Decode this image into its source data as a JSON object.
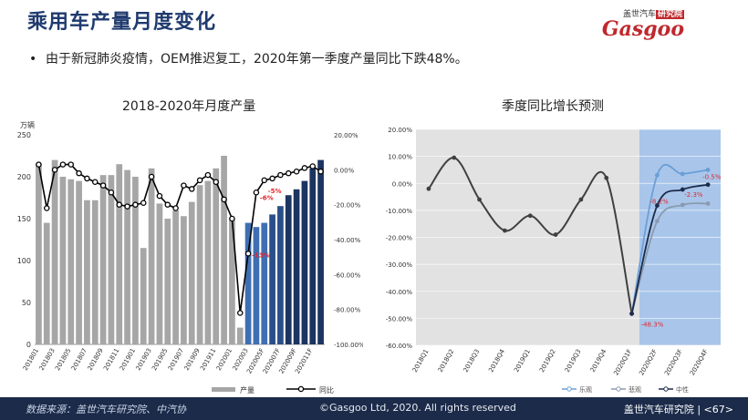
{
  "page": {
    "title": "乘用车产量月度变化",
    "bullet": "由于新冠肺炎疫情，OEM推迟复工，2020年第一季度产量同比下跌48%。",
    "logo_top": "盖世汽车",
    "logo_badge": "研究院",
    "logo_word": "Gasgoo"
  },
  "footer": {
    "source": "数据来源：盖世汽车研究院、中汽协",
    "copyright": "©Gasgoo Ltd, 2020. All rights reserved",
    "brand": "盖世汽车研究院 | <67>"
  },
  "chart_data": [
    {
      "type": "bar",
      "title": "2018-2020年月度产量",
      "ylabel": "万辆",
      "ylim": [
        0,
        250
      ],
      "y2lim": [
        -100,
        20
      ],
      "yticks": [
        "0",
        "50",
        "100",
        "150",
        "200",
        "250"
      ],
      "y2ticks": [
        "20.00%",
        "0.00%",
        "-20.00%",
        "-40.00%",
        "-60.00%",
        "-80.00%",
        "-100.00%"
      ],
      "categories": [
        "201801",
        "201802",
        "201803",
        "201804",
        "201805",
        "201806",
        "201807",
        "201808",
        "201809",
        "201810",
        "201811",
        "201812",
        "201901",
        "201902",
        "201903",
        "201904",
        "201905",
        "201906",
        "201907",
        "201908",
        "201909",
        "201910",
        "201911",
        "201912",
        "202001",
        "202002",
        "202003",
        "202004F",
        "202005F",
        "202006F",
        "202007F",
        "202008F",
        "202009F",
        "202010F",
        "202011F",
        "202012F"
      ],
      "x_tick_labels": [
        "201801",
        "201803",
        "201805",
        "201807",
        "201809",
        "201811",
        "201901",
        "201903",
        "201905",
        "201907",
        "201909",
        "201911",
        "202001",
        "202003",
        "202005F",
        "202007F",
        "202009F",
        "202011F"
      ],
      "series": [
        {
          "name": "产量",
          "kind": "bar",
          "values": [
            215,
            145,
            220,
            200,
            197,
            195,
            172,
            172,
            202,
            202,
            215,
            208,
            200,
            115,
            210,
            168,
            150,
            160,
            153,
            170,
            190,
            195,
            210,
            225,
            150,
            20,
            145,
            140,
            145,
            155,
            165,
            178,
            185,
            195,
            210,
            220
          ]
        },
        {
          "name": "同比",
          "kind": "line",
          "axis": "secondary",
          "values": [
            3,
            -22,
            0,
            3,
            3,
            -2,
            -5,
            -7,
            -9,
            -13,
            -20,
            -21,
            -20,
            -19,
            -4,
            -15,
            -20,
            -22,
            -9,
            -11,
            -6,
            -3,
            -7,
            -17,
            -28,
            -82,
            -48,
            -13,
            -6,
            -5,
            -3,
            -2,
            -1,
            1,
            2,
            -1
          ]
        }
      ],
      "colors": {
        "bar": "#a6a6a6",
        "bar_forecast": "#1c3461",
        "bar_forecast_light": "#5b9bd5",
        "line": "#000000",
        "label": "#e0262d"
      },
      "annotations": [
        "-5%",
        "-6%",
        "-13%"
      ],
      "legend": "bottom"
    },
    {
      "type": "line",
      "title": "季度同比增长预测",
      "ylim": [
        -60,
        20
      ],
      "yticks": [
        "20.00%",
        "10.00%",
        "0.00%",
        "-10.00%",
        "-20.00%",
        "-30.00%",
        "-40.00%",
        "-50.00%",
        "-60.00%"
      ],
      "categories": [
        "2018Q1",
        "2018Q2",
        "2018Q3",
        "2018Q4",
        "2019Q1",
        "2019Q2",
        "2019Q3",
        "2019Q4",
        "2020Q1F",
        "2020Q2F",
        "2020Q3F",
        "2020Q4F"
      ],
      "series": [
        {
          "name": "乐观",
          "values": [
            null,
            null,
            null,
            null,
            null,
            null,
            null,
            null,
            -48.3,
            3,
            3.5,
            5
          ],
          "color": "#6a9fd8"
        },
        {
          "name": "悲观",
          "values": [
            null,
            null,
            null,
            null,
            null,
            null,
            null,
            null,
            -48.3,
            -14,
            -8,
            -7.5
          ],
          "color": "#8a9ab0"
        },
        {
          "name": "中性",
          "values": [
            -2,
            9.5,
            -6,
            -17.5,
            -12,
            -19,
            -6,
            2,
            -48.3,
            -8.2,
            -2.3,
            -0.5
          ],
          "color": "#1c2b4a"
        }
      ],
      "historical_color": "#404040",
      "annotations": [
        "-48.3%",
        "-8.2%",
        "-2.3%",
        "-0.5%"
      ],
      "forecast_shade": "#a9c6ea",
      "history_shade": "#e2e2e2",
      "legend": "bottom"
    }
  ]
}
